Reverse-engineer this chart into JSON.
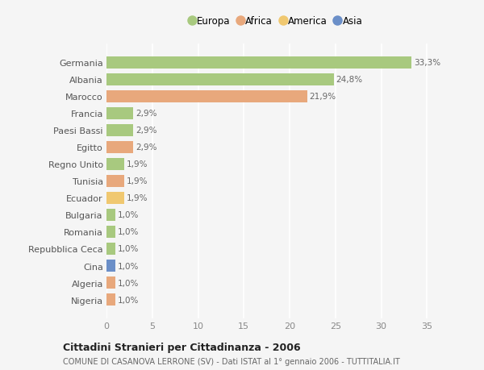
{
  "countries": [
    "Germania",
    "Albania",
    "Marocco",
    "Francia",
    "Paesi Bassi",
    "Egitto",
    "Regno Unito",
    "Tunisia",
    "Ecuador",
    "Bulgaria",
    "Romania",
    "Repubblica Ceca",
    "Cina",
    "Algeria",
    "Nigeria"
  ],
  "values": [
    33.3,
    24.8,
    21.9,
    2.9,
    2.9,
    2.9,
    1.9,
    1.9,
    1.9,
    1.0,
    1.0,
    1.0,
    1.0,
    1.0,
    1.0
  ],
  "labels": [
    "33,3%",
    "24,8%",
    "21,9%",
    "2,9%",
    "2,9%",
    "2,9%",
    "1,9%",
    "1,9%",
    "1,9%",
    "1,0%",
    "1,0%",
    "1,0%",
    "1,0%",
    "1,0%",
    "1,0%"
  ],
  "continents": [
    "Europa",
    "Europa",
    "Africa",
    "Europa",
    "Europa",
    "Africa",
    "Europa",
    "Africa",
    "America",
    "Europa",
    "Europa",
    "Europa",
    "Asia",
    "Africa",
    "Africa"
  ],
  "continent_colors": {
    "Europa": "#a8c97f",
    "Africa": "#e8a87c",
    "America": "#f0c870",
    "Asia": "#6b8fc8"
  },
  "legend_order": [
    "Europa",
    "Africa",
    "America",
    "Asia"
  ],
  "title": "Cittadini Stranieri per Cittadinanza - 2006",
  "subtitle": "COMUNE DI CASANOVA LERRONE (SV) - Dati ISTAT al 1° gennaio 2006 - TUTTITALIA.IT",
  "xlim": [
    0,
    37
  ],
  "xticks": [
    0,
    5,
    10,
    15,
    20,
    25,
    30,
    35
  ],
  "background_color": "#f5f5f5",
  "grid_color": "#ffffff",
  "bar_height": 0.72
}
